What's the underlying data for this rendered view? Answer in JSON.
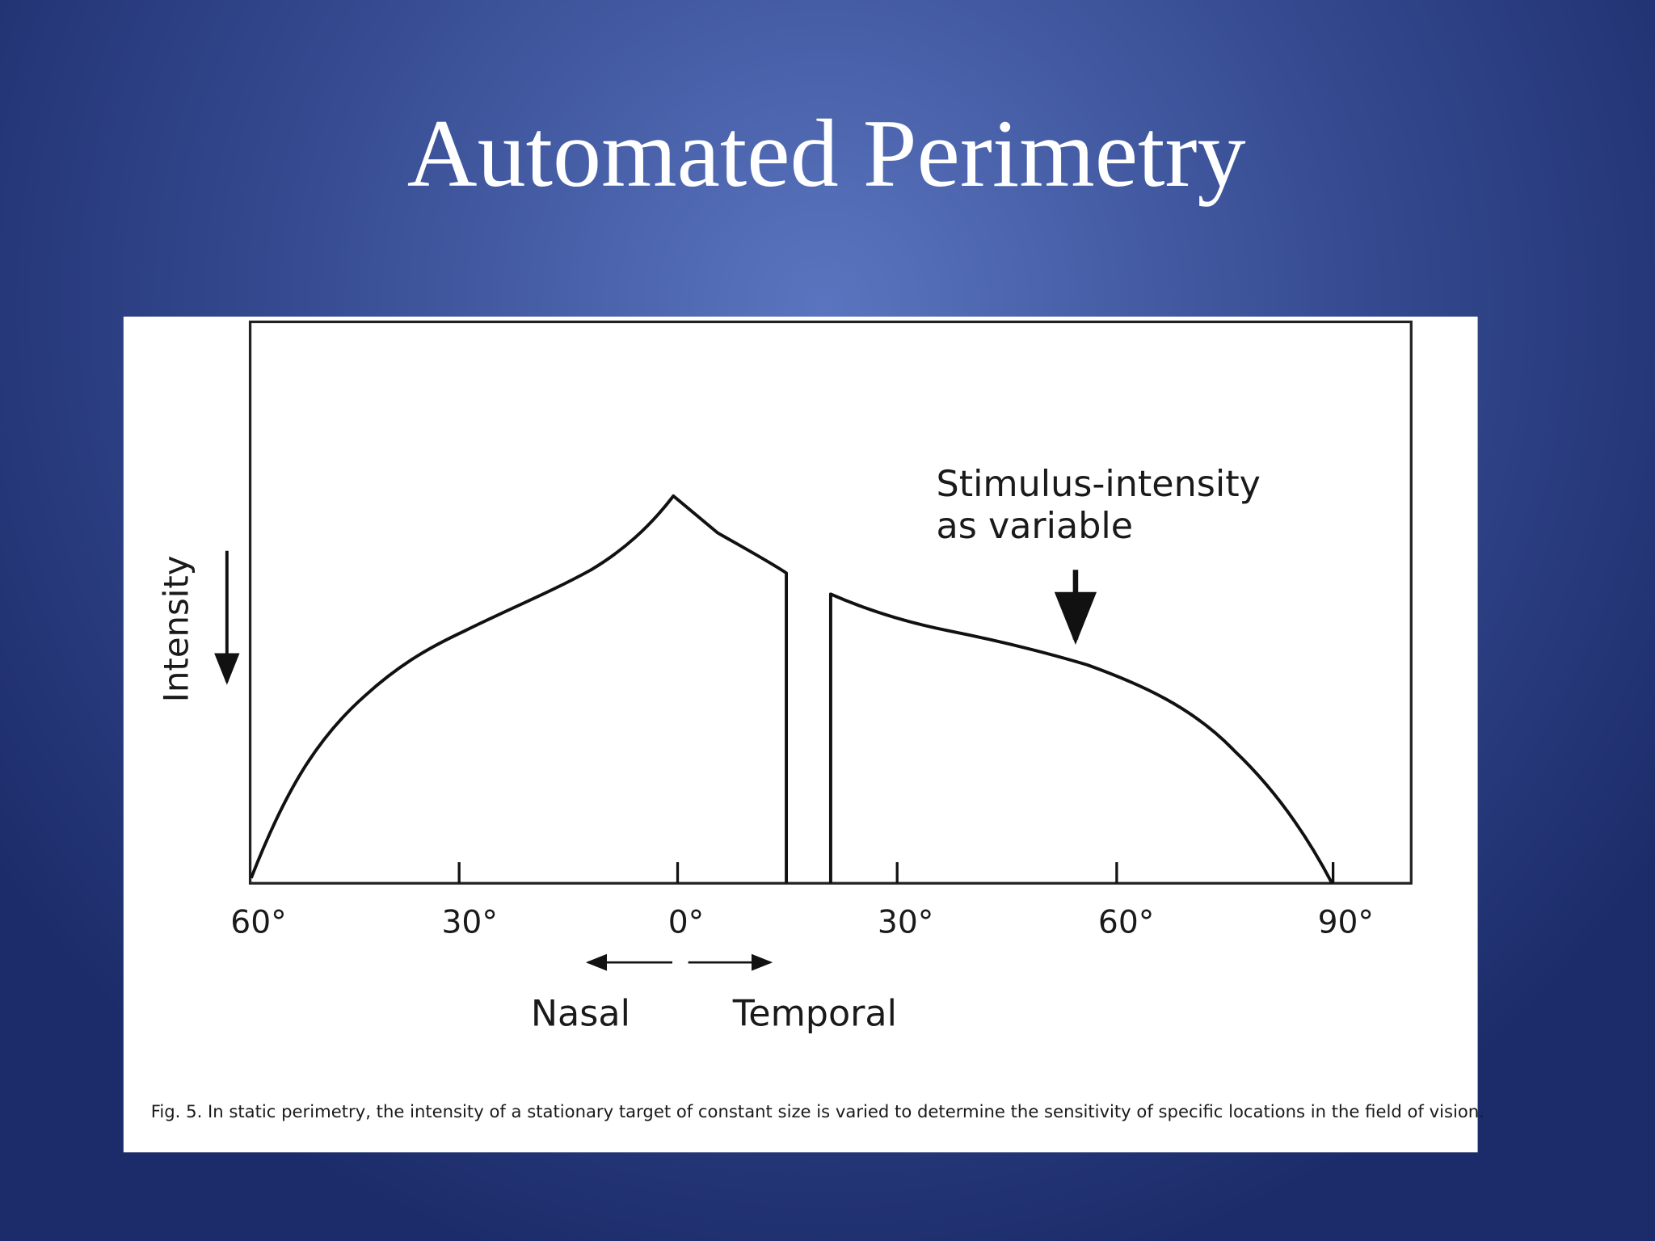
{
  "title": "Automated Perimetry",
  "figure": {
    "y_axis_label": "Intensity",
    "x_tick_labels": [
      "60°",
      "30°",
      "0°",
      "30°",
      "60°",
      "90°"
    ],
    "direction_labels": [
      "Nasal",
      "Temporal"
    ],
    "annotation": [
      "Stimulus-intensity",
      "as variable"
    ],
    "caption": "Fig. 5. In static perimetry, the intensity of a stationary target of constant size is varied to determine the sensitivity of specific locations in the field of vision."
  }
}
